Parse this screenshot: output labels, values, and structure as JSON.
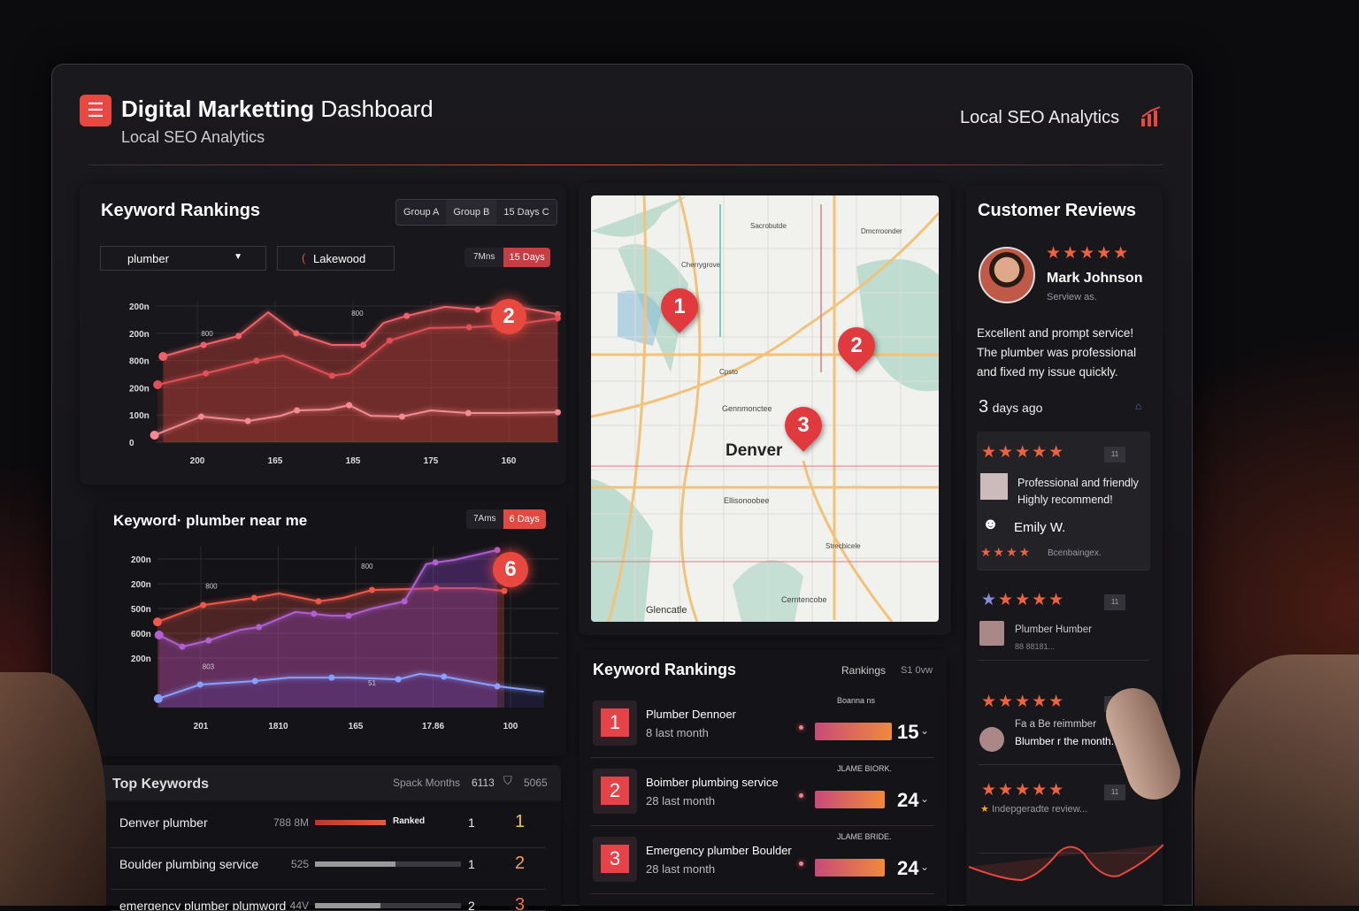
{
  "header": {
    "logo_glyph": "☰",
    "title_bold": "Digital Marketting",
    "title_light": "Dashboard",
    "subtitle": "Local SEO Analytics",
    "right_title": "Local SEO Analytics",
    "right_icon": "bar-chart-icon"
  },
  "colors": {
    "accent": "#e8483f",
    "background": "#141317",
    "panel": "#18171b"
  },
  "rankings_panel": {
    "title": "Keyword Rankings",
    "groups": [
      "Group A",
      "Group B",
      "15 Days C"
    ],
    "keyword_select": "plumber",
    "location_select": "Lakewood",
    "ranges": [
      "7Mns",
      "15 Days"
    ],
    "badge": "2"
  },
  "keyword_panel": {
    "title": "Keyword· plumber near me",
    "ranges": [
      "7Ams",
      "6 Days"
    ],
    "badge": "6"
  },
  "chart_data": [
    {
      "type": "line",
      "title": "",
      "ylim": [
        0,
        5.2
      ],
      "xlim": [
        0.4,
        5.65
      ],
      "y_ticks": [
        {
          "v": 5,
          "label": "200n"
        },
        {
          "v": 4,
          "label": "200n"
        },
        {
          "v": 3,
          "label": "800n"
        },
        {
          "v": 2,
          "label": "200n"
        },
        {
          "v": 1,
          "label": "100n"
        },
        {
          "v": 0,
          "label": "0"
        }
      ],
      "x_ticks": [
        {
          "v": 1,
          "label": "200"
        },
        {
          "v": 2,
          "label": "165"
        },
        {
          "v": 3,
          "label": "185"
        },
        {
          "v": 4,
          "label": "175"
        },
        {
          "v": 5,
          "label": "160"
        }
      ],
      "annotations": [
        {
          "x": 1.05,
          "y": 3.9,
          "label": "800"
        },
        {
          "x": 2.98,
          "y": 4.65,
          "label": "800"
        }
      ],
      "series": [
        {
          "color": "#f0626a",
          "x": [
            0.56,
            1.08,
            1.53,
            1.91,
            2.27,
            2.73,
            3.13,
            3.39,
            3.69,
            4.18,
            4.6,
            5.0,
            5.63
          ],
          "y": [
            3.15,
            3.57,
            3.9,
            4.77,
            4.0,
            3.57,
            3.57,
            4.38,
            4.64,
            4.97,
            4.87,
            5.03,
            4.7
          ]
        },
        {
          "color": "#e0505a",
          "x": [
            0.49,
            1.11,
            1.76,
            2.1,
            2.73,
            2.95,
            3.47,
            3.98,
            4.49,
            5.0,
            5.63
          ],
          "y": [
            2.11,
            2.53,
            2.99,
            3.18,
            2.44,
            2.53,
            3.73,
            4.19,
            4.22,
            4.3,
            4.55
          ]
        },
        {
          "color": "#f48a92",
          "x": [
            0.45,
            1.05,
            1.65,
            2.07,
            2.28,
            2.69,
            2.95,
            3.23,
            3.63,
            4.0,
            4.48,
            5.0,
            5.63
          ],
          "y": [
            0.26,
            0.94,
            0.78,
            0.97,
            1.17,
            1.2,
            1.36,
            0.97,
            0.94,
            1.17,
            1.07,
            1.07,
            1.1
          ]
        }
      ]
    },
    {
      "type": "line",
      "title": "",
      "ylim": [
        0,
        6.5
      ],
      "xlim": [
        0.44,
        5.6
      ],
      "y_ticks": [
        {
          "v": 6,
          "label": "200n"
        },
        {
          "v": 5,
          "label": "200n"
        },
        {
          "v": 4,
          "label": "500n"
        },
        {
          "v": 3,
          "label": "600n"
        },
        {
          "v": 2,
          "label": "200n"
        }
      ],
      "x_ticks": [
        {
          "v": 1,
          "label": "201"
        },
        {
          "v": 2,
          "label": "1810"
        },
        {
          "v": 3,
          "label": "165"
        },
        {
          "v": 4,
          "label": "17.86"
        },
        {
          "v": 5,
          "label": "100"
        }
      ],
      "annotations": [
        {
          "x": 1.06,
          "y": 4.8,
          "label": "800"
        },
        {
          "x": 3.07,
          "y": 5.6,
          "label": "800"
        },
        {
          "x": 1.02,
          "y": 1.55,
          "label": "803"
        },
        {
          "x": 3.16,
          "y": 0.9,
          "label": "51"
        }
      ],
      "series": [
        {
          "color": "#f2584a",
          "x": [
            0.44,
            1.03,
            1.69,
            2.01,
            2.52,
            2.84,
            3.21,
            3.74,
            4.04,
            4.55,
            4.92
          ],
          "y": [
            3.46,
            4.14,
            4.43,
            4.61,
            4.29,
            4.43,
            4.75,
            4.79,
            4.82,
            4.82,
            4.71
          ]
        },
        {
          "color": "#b060d0",
          "x": [
            0.46,
            0.76,
            1.1,
            1.51,
            1.75,
            2.22,
            2.46,
            2.68,
            2.91,
            3.21,
            3.63,
            3.91,
            4.03,
            4.27,
            4.83
          ],
          "y": [
            2.93,
            2.46,
            2.71,
            3.14,
            3.25,
            3.86,
            3.79,
            3.71,
            3.71,
            4.0,
            4.29,
            5.79,
            5.86,
            5.96,
            6.36
          ]
        },
        {
          "color": "#8aa0ff",
          "x": [
            0.45,
            0.99,
            1.7,
            2.14,
            2.69,
            2.91,
            3.55,
            3.83,
            4.14,
            4.58,
            4.83,
            5.43
          ],
          "y": [
            0.36,
            0.93,
            1.07,
            1.21,
            1.21,
            1.21,
            1.14,
            1.36,
            1.25,
            1.0,
            0.86,
            0.64
          ]
        }
      ]
    }
  ],
  "top_keywords": {
    "title": "Top Keywords",
    "col1": "Spack Months",
    "col2": "6113",
    "col3": "5065",
    "rows": [
      {
        "keyword": "Denver plumber",
        "volume": "788 8M",
        "progress": 1.0,
        "tag": "Ranked",
        "prev": "1",
        "rank": "1",
        "rank_color": "#f5c542"
      },
      {
        "keyword": "Boulder plumbing service",
        "volume": "525",
        "progress": 0.55,
        "tag": "",
        "prev": "1",
        "rank": "2",
        "rank_color": "#f2a060"
      },
      {
        "keyword": "emergency plumber plumword",
        "volume": "44V",
        "progress": 0.45,
        "tag": "",
        "prev": "2",
        "rank": "3",
        "rank_color": "#f07050"
      }
    ]
  },
  "map": {
    "city": "Denver",
    "south_label": "Glencatle",
    "labels": [
      "Cherrygrove",
      "Gennmonctee",
      "Ellisonoobee",
      "Sacrobutde",
      "Dmcrroonder",
      "Cpsto",
      "Strecbicele",
      "Cerntencobe"
    ],
    "pins": [
      "1",
      "2",
      "3"
    ]
  },
  "keyword_rankings": {
    "title": "Keyword Rankings",
    "col1": "Rankings",
    "col2": "S1 0vw",
    "rows": [
      {
        "rank": "1",
        "keyword": "Plumber Dennoer",
        "sub": "8 last month",
        "label": "Boanna ns",
        "value": "15",
        "fill": 0.95
      },
      {
        "rank": "2",
        "keyword": "Boimber plumbing service",
        "sub": "28 last month",
        "label": "JLAME BIORK.",
        "value": "24",
        "fill": 0.86
      },
      {
        "rank": "3",
        "keyword": "Emergency plumber Boulder",
        "sub": "28 last month",
        "label": "JLAME BRIDE.",
        "value": "24",
        "fill": 0.86
      }
    ]
  },
  "reviews": {
    "title": "Customer Reviews",
    "featured": {
      "name": "Mark Johnson",
      "meta": "Serview as.",
      "rating": 5,
      "lines": [
        "Excellent and prompt service!",
        "The plumber was professional",
        "and fixed my issue quickly."
      ],
      "days": "3",
      "ago": "days ago"
    },
    "cards": [
      {
        "rating": 4.5,
        "lines": [
          "Professional and friendly",
          "Highly recommend!"
        ],
        "name": "Emily W.",
        "rating2": 4,
        "meta": "Bcenbaingex.",
        "badge": "11"
      },
      {
        "rating": 5,
        "lines": [
          "Plumber Humber",
          "88 88181..."
        ],
        "badge": "11"
      },
      {
        "rating": 5,
        "lines": [
          "Fa a Be reimmber",
          "Blumber r the month."
        ],
        "badge": "11"
      },
      {
        "rating": 5,
        "lines": [
          "Indepgeradte review..."
        ],
        "badge": "11"
      }
    ]
  }
}
